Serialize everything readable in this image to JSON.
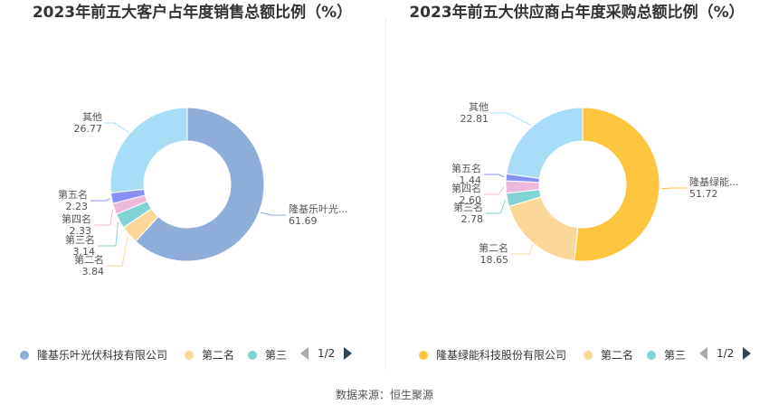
{
  "source_label": "数据来源：恒生聚源",
  "pager_text": "1/2",
  "chart_data": [
    {
      "type": "pie",
      "title": "2023年前五大客户占年度销售总额比例（%）",
      "labels": [
        "隆基乐叶光伏科技有限公司",
        "第二名",
        "第三名",
        "第四名",
        "第五名",
        "其他"
      ],
      "display_labels": [
        "隆基乐叶光...",
        "第二名",
        "第三名",
        "第四名",
        "第五名",
        "其他"
      ],
      "values": [
        61.69,
        3.84,
        3.14,
        2.33,
        2.23,
        26.77
      ],
      "value_text": [
        "61.69",
        "3.84",
        "3.14",
        "2.33",
        "2.23",
        "26.77"
      ],
      "colors": [
        "#8eadd9",
        "#fbd89a",
        "#83d3d4",
        "#ecb9dd",
        "#8790f5",
        "#a8ddf7"
      ],
      "legend": [
        "隆基乐叶光伏科技有限公司",
        "第二名",
        "第三"
      ],
      "legend_position": "bottom"
    },
    {
      "type": "pie",
      "title": "2023年前五大供应商占年度采购总额比例（%）",
      "labels": [
        "隆基绿能科技股份有限公司",
        "第二名",
        "第三名",
        "第四名",
        "第五名",
        "其他"
      ],
      "display_labels": [
        "隆基绿能...",
        "第二名",
        "第三名",
        "第四名",
        "第五名",
        "其他"
      ],
      "values": [
        51.72,
        18.65,
        2.78,
        2.6,
        1.44,
        22.81
      ],
      "value_text": [
        "51.72",
        "18.65",
        "2.78",
        "2.60",
        "1.44",
        "22.81"
      ],
      "colors": [
        "#fdc43d",
        "#fbd89a",
        "#83d3d4",
        "#ecb9dd",
        "#8790f5",
        "#a8ddf7"
      ],
      "legend": [
        "隆基绿能科技股份有限公司",
        "第二名",
        "第三"
      ],
      "legend_position": "bottom"
    }
  ]
}
